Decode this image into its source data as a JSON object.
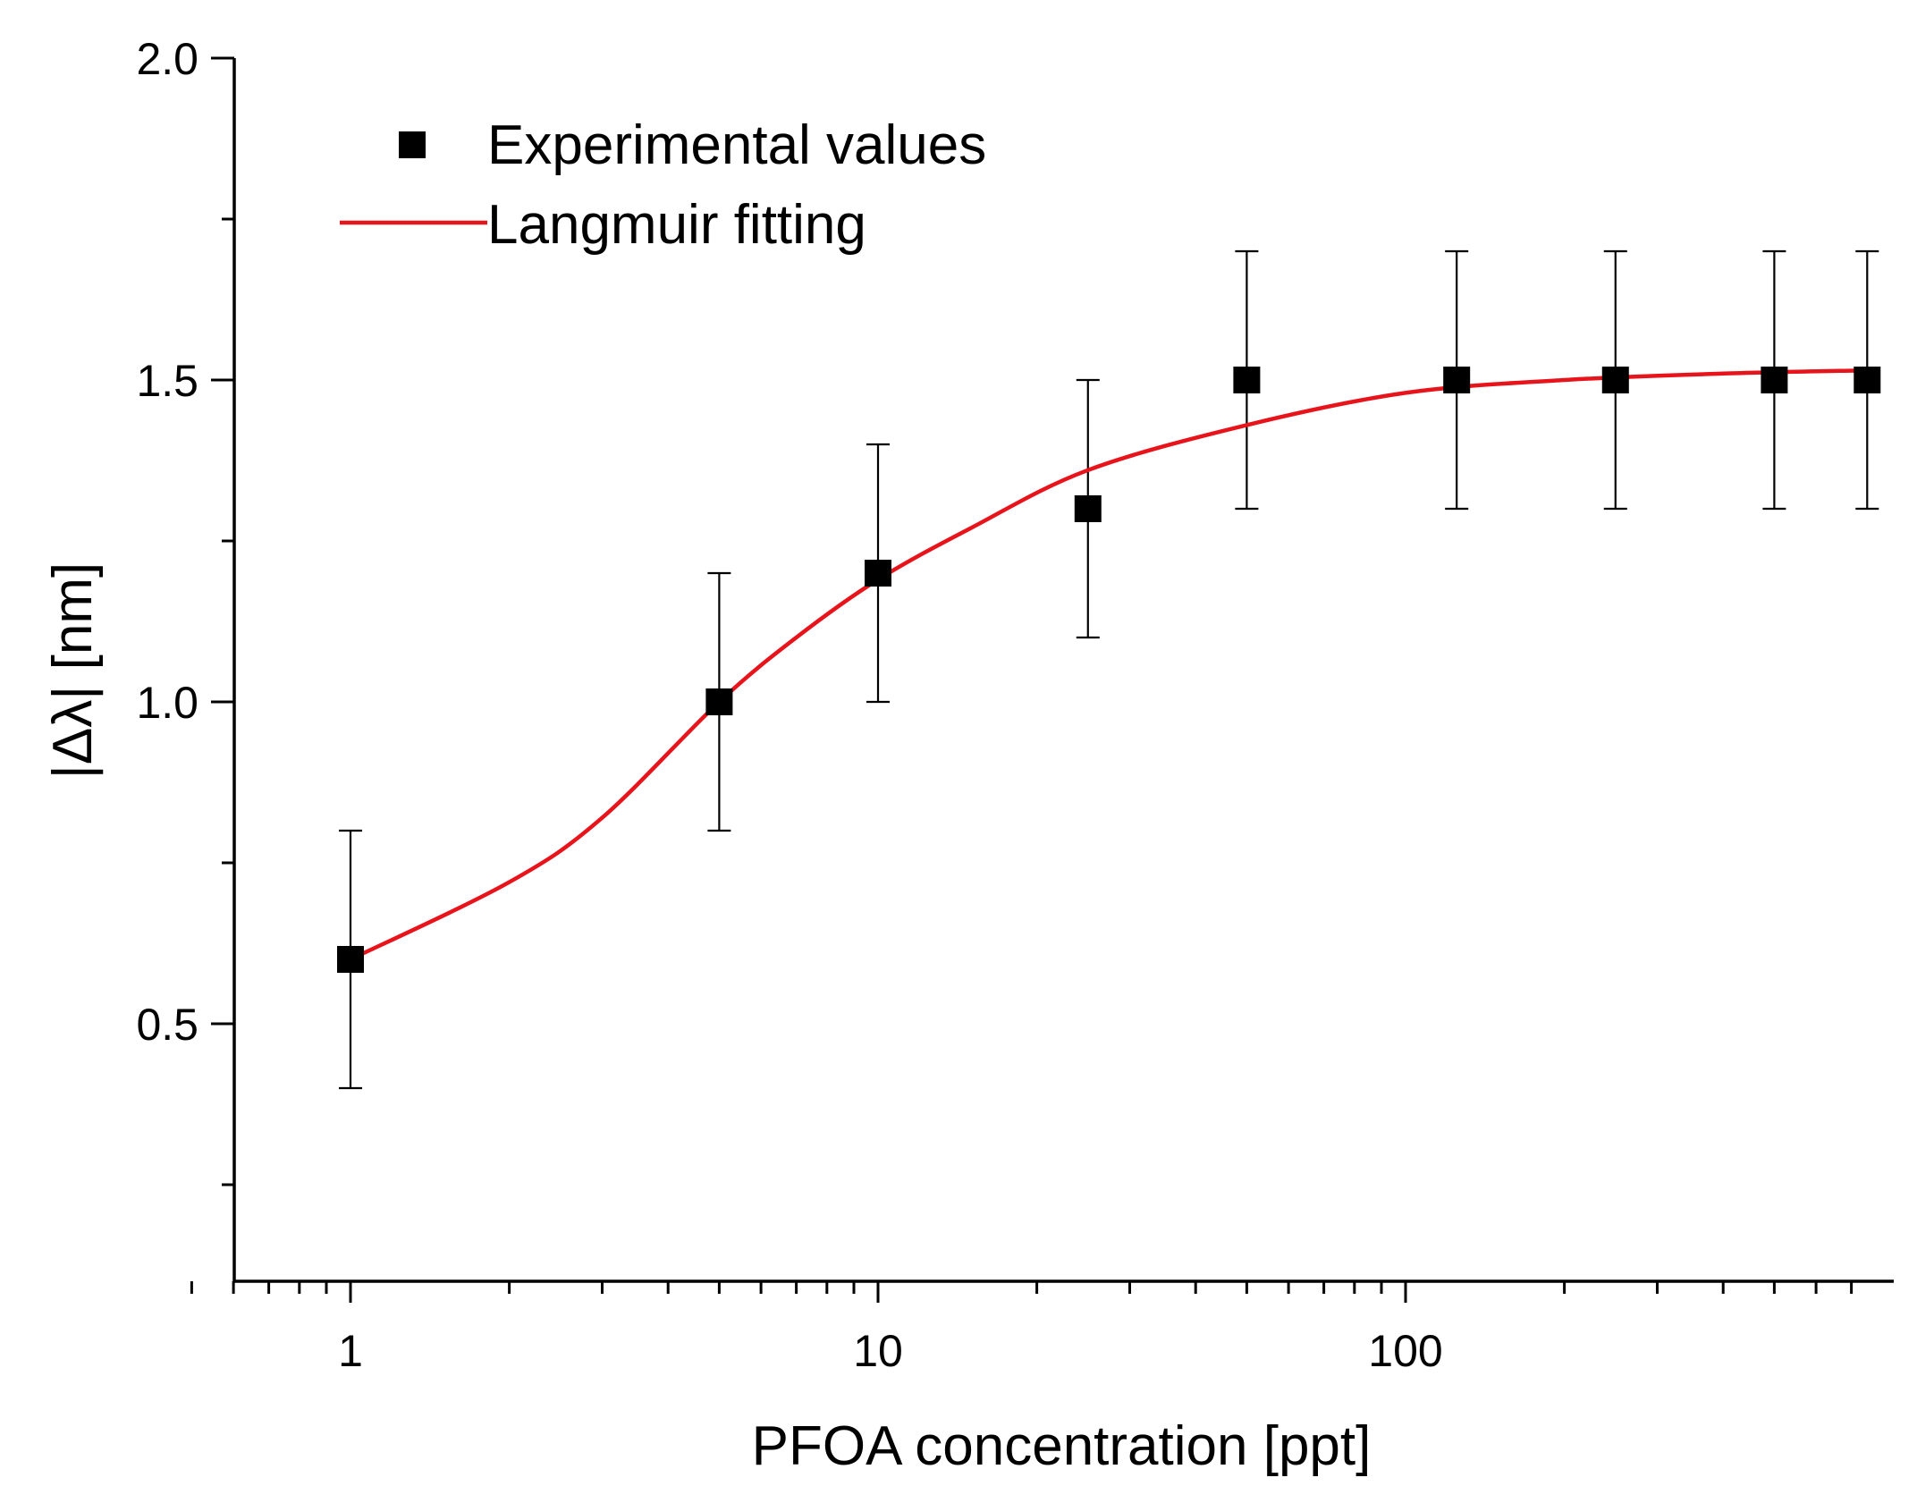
{
  "chart_data": {
    "type": "scatter",
    "xlabel": "PFOA concentration [ppt]",
    "ylabel": "|Δλ| [nm]",
    "xscale": "log",
    "xlim": [
      0.5,
      700
    ],
    "ylim": [
      0.1,
      2.0
    ],
    "x_ticks": [
      1,
      10,
      100
    ],
    "x_tick_labels": [
      "1",
      "10",
      "100"
    ],
    "y_ticks": [
      0.5,
      1.0,
      1.5,
      2.0
    ],
    "y_tick_labels": [
      "0.5",
      "1.0",
      "1.5",
      "2.0"
    ],
    "legend": {
      "position": "top-left",
      "entries": [
        {
          "label": "Experimental values",
          "marker": "square"
        },
        {
          "label": "Langmuir fitting",
          "marker": "line"
        }
      ]
    },
    "series": [
      {
        "name": "Experimental values",
        "color": "#000000",
        "points": [
          {
            "x": 1,
            "y": 0.6,
            "err": 0.2
          },
          {
            "x": 5,
            "y": 1.0,
            "err": 0.2
          },
          {
            "x": 10,
            "y": 1.2,
            "err": 0.2
          },
          {
            "x": 25,
            "y": 1.3,
            "err": 0.2
          },
          {
            "x": 50,
            "y": 1.5,
            "err": 0.2
          },
          {
            "x": 125,
            "y": 1.5,
            "err": 0.2
          },
          {
            "x": 250,
            "y": 1.5,
            "err": 0.2
          },
          {
            "x": 500,
            "y": 1.5,
            "err": 0.2
          },
          {
            "x": 750,
            "y": 1.5,
            "err": 0.2
          }
        ]
      },
      {
        "name": "Langmuir fitting",
        "color": "#e8141c",
        "points": [
          {
            "x": 1,
            "y": 0.6
          },
          {
            "x": 2,
            "y": 0.72
          },
          {
            "x": 3,
            "y": 0.82
          },
          {
            "x": 5,
            "y": 1.0
          },
          {
            "x": 7,
            "y": 1.1
          },
          {
            "x": 10,
            "y": 1.19
          },
          {
            "x": 15,
            "y": 1.27
          },
          {
            "x": 25,
            "y": 1.36
          },
          {
            "x": 50,
            "y": 1.43
          },
          {
            "x": 100,
            "y": 1.48
          },
          {
            "x": 200,
            "y": 1.5
          },
          {
            "x": 400,
            "y": 1.51
          },
          {
            "x": 750,
            "y": 1.515
          }
        ]
      }
    ]
  }
}
